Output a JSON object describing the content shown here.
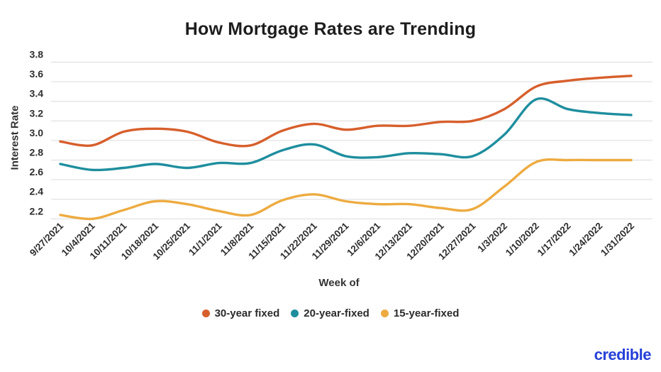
{
  "chart_data": {
    "type": "line",
    "title": "How Mortgage Rates are Trending",
    "xlabel": "Week of",
    "ylabel": "Interest Rate",
    "ylim": [
      2.2,
      3.8
    ],
    "y_ticks": [
      3.8,
      3.6,
      3.4,
      3.2,
      3.0,
      2.8,
      2.6,
      2.4,
      2.2
    ],
    "grid": true,
    "legend_position": "bottom",
    "x": [
      "9/27/2021",
      "10/4/2021",
      "10/11/2021",
      "10/18/2021",
      "10/25/2021",
      "11/1/2021",
      "11/8/2021",
      "11/15/2021",
      "11/22/2021",
      "11/29/2021",
      "12/6/2021",
      "12/13/2021",
      "12/20/2021",
      "12/27/2021",
      "1/3/2022",
      "1/10/2022",
      "1/17/2022",
      "1/24/2022",
      "1/31/2022"
    ],
    "series": [
      {
        "name": "30-year fixed",
        "color": "#d75f2c",
        "values": [
          2.99,
          2.95,
          3.09,
          3.12,
          3.09,
          2.98,
          2.95,
          3.1,
          3.17,
          3.11,
          3.15,
          3.15,
          3.19,
          3.2,
          3.32,
          3.55,
          3.61,
          3.64,
          3.66
        ]
      },
      {
        "name": "20-year-fixed",
        "color": "#1e8e9e",
        "values": [
          2.76,
          2.7,
          2.72,
          2.76,
          2.72,
          2.77,
          2.77,
          2.9,
          2.96,
          2.84,
          2.83,
          2.87,
          2.86,
          2.84,
          3.06,
          3.42,
          3.32,
          3.28,
          3.26
        ]
      },
      {
        "name": "15-year-fixed",
        "color": "#edab40",
        "values": [
          2.24,
          2.2,
          2.29,
          2.38,
          2.35,
          2.28,
          2.24,
          2.39,
          2.45,
          2.38,
          2.35,
          2.35,
          2.31,
          2.3,
          2.53,
          2.78,
          2.8,
          2.8,
          2.8
        ]
      }
    ]
  },
  "branding": {
    "logo_text": "credible",
    "logo_color": "#2541d8"
  }
}
